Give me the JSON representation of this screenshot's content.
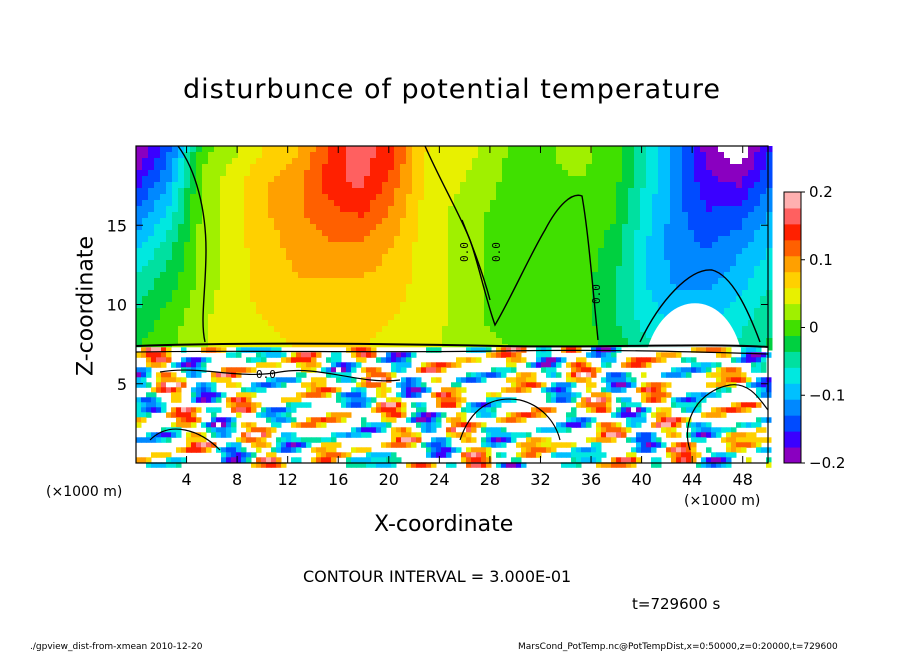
{
  "chart_data": {
    "type": "heatmap",
    "title": "disturbunce of potential temperature",
    "xlabel": "X-coordinate",
    "ylabel": "Z-coordinate",
    "x_unit": "(×1000 m)",
    "xlim": [
      0,
      50
    ],
    "ylim": [
      0,
      20
    ],
    "x_ticks": [
      4,
      8,
      12,
      16,
      20,
      24,
      28,
      32,
      36,
      40,
      44,
      48
    ],
    "y_ticks": [
      5,
      10,
      15
    ],
    "colorbar": {
      "range": [
        -0.2,
        0.2
      ],
      "ticks": [
        {
          "value": 0.2,
          "label": "0.2"
        },
        {
          "value": 0.1,
          "label": "0.1"
        },
        {
          "value": 0,
          "label": "0"
        },
        {
          "value": -0.1,
          "label": "−0.1"
        },
        {
          "value": -0.2,
          "label": "−0.2"
        }
      ],
      "colors": [
        "#8a00c0",
        "#3a00ff",
        "#004bff",
        "#0088ff",
        "#00c0ff",
        "#00e8e0",
        "#00e0a0",
        "#00d040",
        "#40e000",
        "#a0f000",
        "#e8f000",
        "#ffd000",
        "#ffa000",
        "#ff6000",
        "#ff2000",
        "#ff6060",
        "#ffb0b0"
      ]
    },
    "contour_interval": "CONTOUR INTERVAL = 3.000E-01",
    "contour_labels": [
      "0.0",
      "0.0",
      "0.0",
      "0.0"
    ],
    "time_label": "t=729600 s",
    "upper_field": [
      [
        -0.2,
        -0.13,
        0.0,
        0.03,
        0.06,
        0.08,
        0.13,
        0.17,
        0.14,
        0.06,
        0.05,
        0.03,
        0.0,
        0.01,
        0.02,
        0.0,
        -0.06,
        -0.12,
        -0.19,
        -0.22,
        -0.15
      ],
      [
        -0.16,
        -0.1,
        0.02,
        0.05,
        0.08,
        0.1,
        0.14,
        0.16,
        0.12,
        0.06,
        0.04,
        0.02,
        0.0,
        0.01,
        0.01,
        0.0,
        -0.06,
        -0.12,
        -0.17,
        -0.18,
        -0.13
      ],
      [
        -0.12,
        -0.07,
        0.02,
        0.05,
        0.08,
        0.1,
        0.12,
        0.13,
        0.1,
        0.05,
        0.03,
        0.01,
        0.0,
        0.0,
        0.0,
        -0.01,
        -0.07,
        -0.12,
        -0.15,
        -0.14,
        -0.1
      ],
      [
        -0.08,
        -0.04,
        0.02,
        0.05,
        0.07,
        0.09,
        0.1,
        0.1,
        0.08,
        0.05,
        0.03,
        0.01,
        0.0,
        0.0,
        0.0,
        -0.02,
        -0.08,
        -0.12,
        -0.13,
        -0.11,
        -0.08
      ],
      [
        -0.05,
        -0.02,
        0.02,
        0.05,
        0.07,
        0.08,
        0.08,
        0.08,
        0.07,
        0.05,
        0.03,
        0.01,
        0.0,
        0.0,
        0.0,
        -0.03,
        -0.08,
        -0.11,
        -0.11,
        -0.09,
        -0.06
      ],
      [
        -0.03,
        0.0,
        0.03,
        0.05,
        0.06,
        0.07,
        0.07,
        0.07,
        0.06,
        0.05,
        0.03,
        0.01,
        0.0,
        0.0,
        0.0,
        -0.03,
        -0.07,
        -0.09,
        -0.09,
        -0.07,
        -0.04
      ],
      [
        -0.01,
        0.01,
        0.03,
        0.05,
        0.05,
        0.06,
        0.06,
        0.06,
        0.05,
        0.04,
        0.03,
        0.02,
        0.01,
        0.0,
        0.0,
        -0.02,
        -0.05,
        -0.07,
        -0.07,
        -0.05,
        -0.03
      ]
    ]
  }
}
